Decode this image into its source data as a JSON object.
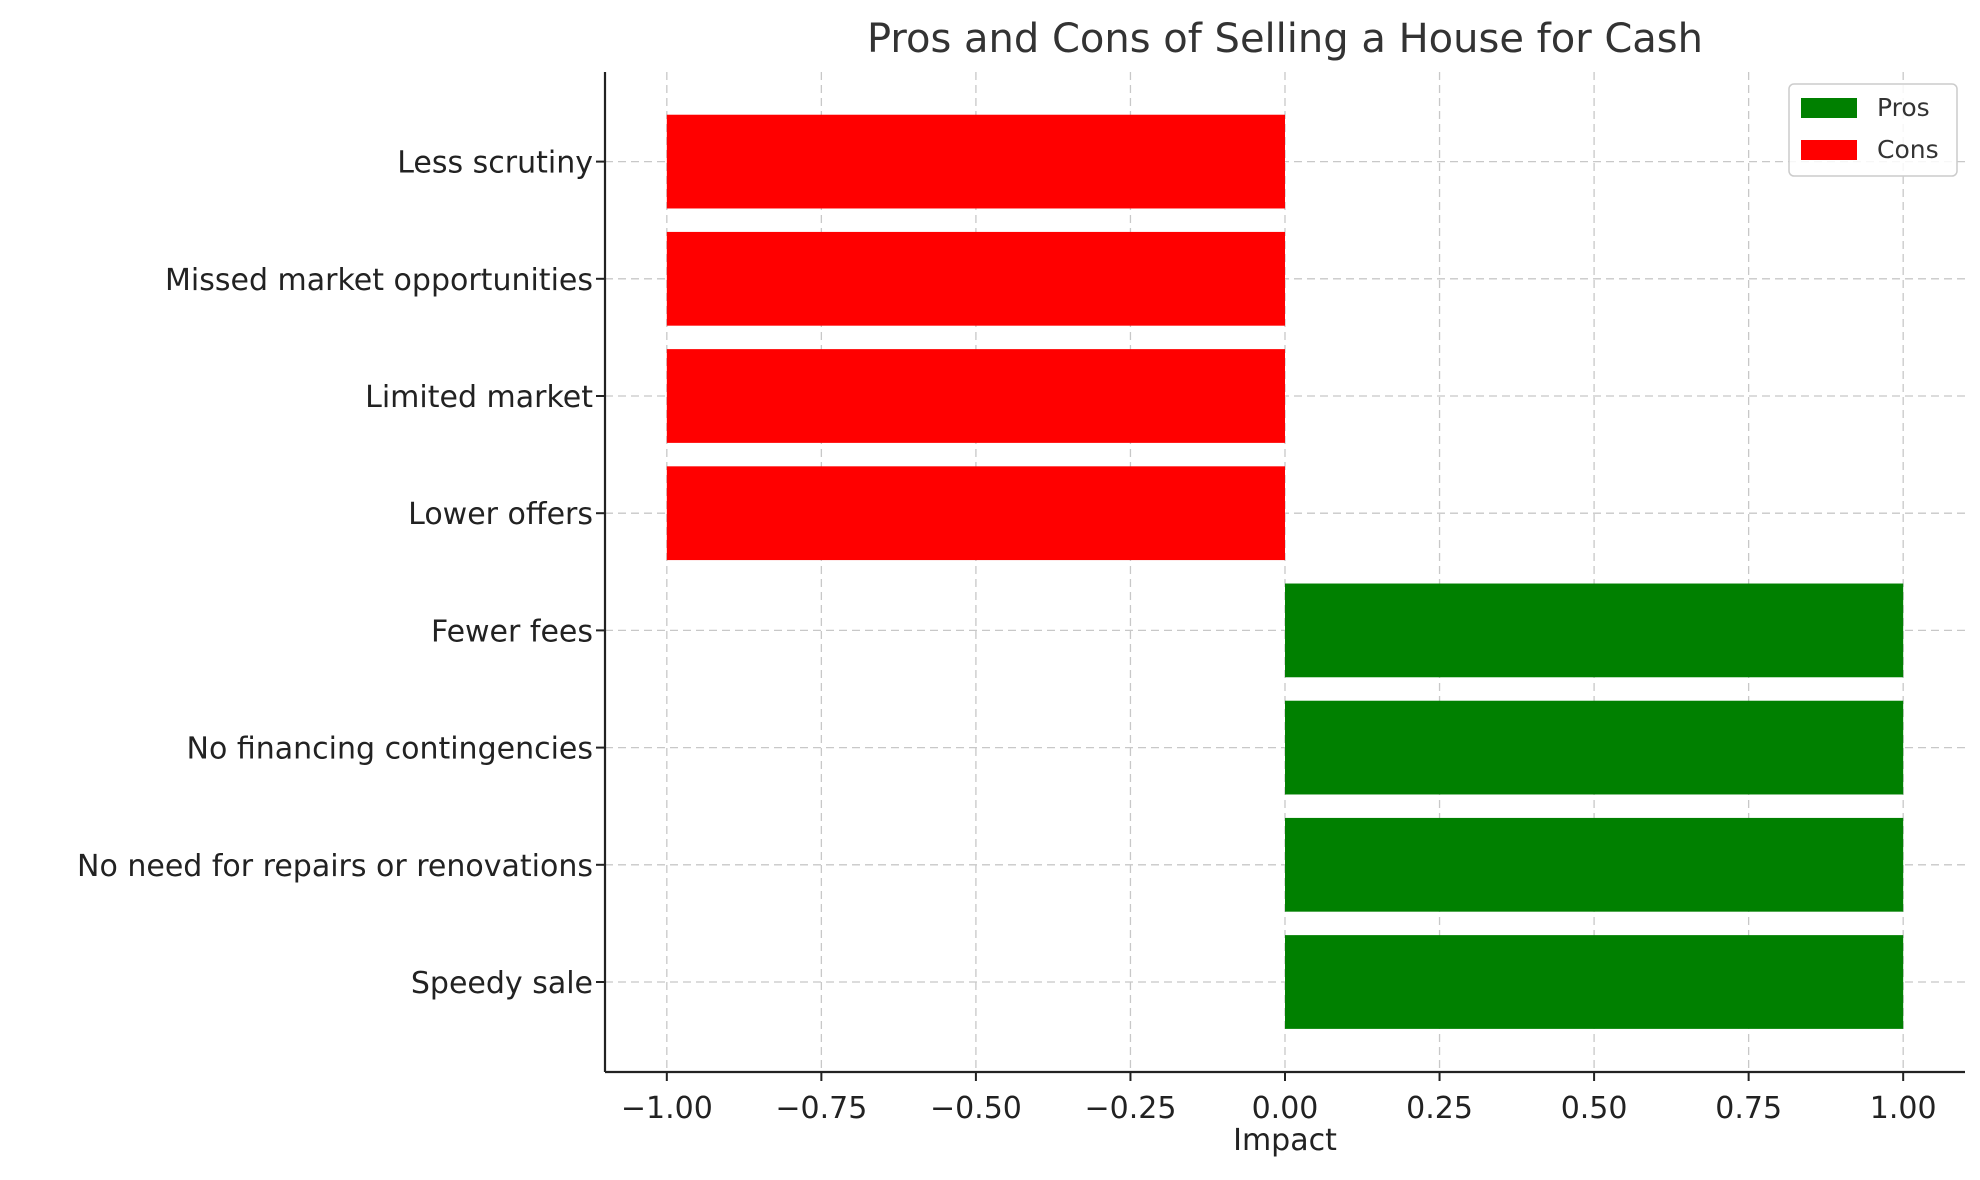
{
  "chart_data": {
    "type": "bar",
    "orientation": "horizontal",
    "title": "Pros and Cons of Selling a House for Cash",
    "xlabel": "Impact",
    "ylabel": "",
    "xlim": [
      -1.1,
      1.1
    ],
    "xticks": [
      -1.0,
      -0.75,
      -0.5,
      -0.25,
      0.0,
      0.25,
      0.5,
      0.75,
      1.0
    ],
    "xtick_labels": [
      "−1.00",
      "−0.75",
      "−0.50",
      "−0.25",
      "0.00",
      "0.25",
      "0.50",
      "0.75",
      "1.00"
    ],
    "grid": true,
    "legend_position": "top-right",
    "categories": [
      "Speedy sale",
      "No need for repairs or renovations",
      "No financing contingencies",
      "Fewer fees",
      "Lower offers",
      "Limited market",
      "Missed market opportunities",
      "Less scrutiny"
    ],
    "series": [
      {
        "name": "Pros",
        "color": "#008000",
        "values": [
          1,
          1,
          1,
          1,
          null,
          null,
          null,
          null
        ]
      },
      {
        "name": "Cons",
        "color": "#ff0000",
        "values": [
          null,
          null,
          null,
          null,
          -1,
          -1,
          -1,
          -1
        ]
      }
    ]
  }
}
